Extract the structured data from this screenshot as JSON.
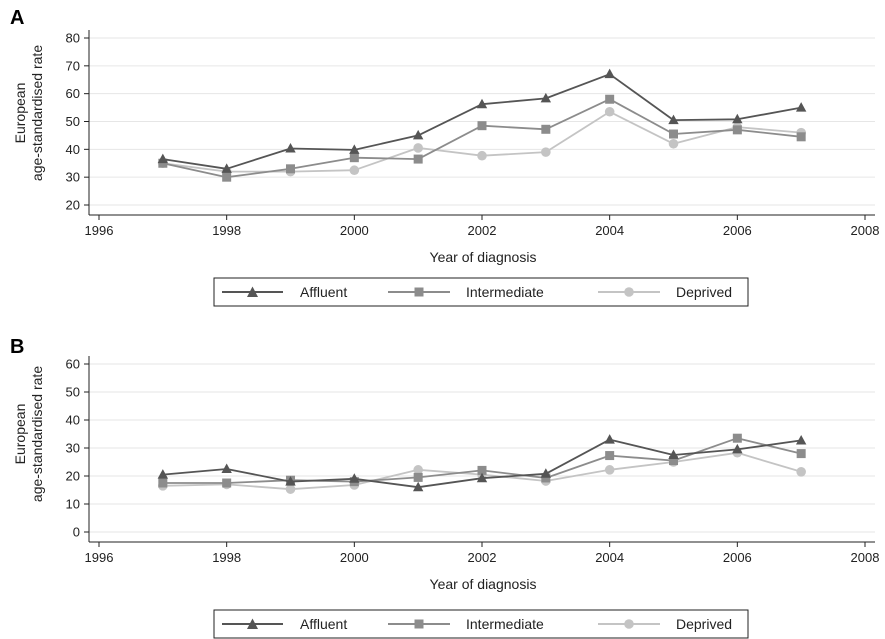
{
  "panels": [
    {
      "letter": "A",
      "ylabel_line1": "European",
      "ylabel_line2": "age-standardised rate",
      "xlabel": "Year of diagnosis"
    },
    {
      "letter": "B",
      "ylabel_line1": "European",
      "ylabel_line2": "age-standardised rate",
      "xlabel": "Year of diagnosis"
    }
  ],
  "chart_data": [
    {
      "type": "line",
      "panel": "A",
      "xlabel": "Year of diagnosis",
      "ylabel": "European age-standardised rate",
      "xlim": [
        1996,
        2008
      ],
      "ylim": [
        20,
        80
      ],
      "xticks": [
        1996,
        1998,
        2000,
        2002,
        2004,
        2006,
        2008
      ],
      "yticks": [
        20,
        30,
        40,
        50,
        60,
        70,
        80
      ],
      "grid": "horizontal",
      "legend_position": "bottom",
      "x": [
        1997,
        1998,
        1999,
        2000,
        2001,
        2002,
        2003,
        2004,
        2005,
        2006,
        2007
      ],
      "series": [
        {
          "name": "Affluent",
          "marker": "triangle",
          "color": "#555555",
          "values": [
            36.5,
            33,
            40.3,
            39.8,
            45,
            56.2,
            58.3,
            67,
            50.5,
            50.8,
            55
          ]
        },
        {
          "name": "Intermediate",
          "marker": "square",
          "color": "#8c8c8c",
          "values": [
            35,
            30,
            33,
            37,
            36.5,
            48.5,
            47.2,
            58,
            45.5,
            47,
            44.5
          ]
        },
        {
          "name": "Deprived",
          "marker": "circle",
          "color": "#c4c4c4",
          "values": [
            35,
            32,
            32,
            32.5,
            40.5,
            37.7,
            39,
            53.5,
            42,
            48,
            46
          ]
        }
      ]
    },
    {
      "type": "line",
      "panel": "B",
      "xlabel": "Year of diagnosis",
      "ylabel": "European age-standardised rate",
      "xlim": [
        1996,
        2008
      ],
      "ylim": [
        0,
        60
      ],
      "xticks": [
        1996,
        1998,
        2000,
        2002,
        2004,
        2006,
        2008
      ],
      "yticks": [
        0,
        10,
        20,
        30,
        40,
        50,
        60
      ],
      "grid": "horizontal",
      "legend_position": "bottom",
      "x": [
        1997,
        1998,
        1999,
        2000,
        2001,
        2002,
        2003,
        2004,
        2005,
        2006,
        2007
      ],
      "series": [
        {
          "name": "Affluent",
          "marker": "triangle",
          "color": "#555555",
          "values": [
            20.5,
            22.5,
            18,
            19,
            16,
            19.2,
            20.8,
            33,
            27.5,
            29.5,
            32.7
          ]
        },
        {
          "name": "Intermediate",
          "marker": "square",
          "color": "#8c8c8c",
          "values": [
            17.5,
            17.5,
            18.5,
            18,
            19.5,
            22,
            19.3,
            27.3,
            25.5,
            33.5,
            28
          ]
        },
        {
          "name": "Deprived",
          "marker": "circle",
          "color": "#c4c4c4",
          "values": [
            16.5,
            17,
            15.3,
            16.8,
            22.2,
            20.5,
            18.2,
            22.2,
            25,
            28.3,
            21.5
          ]
        }
      ]
    }
  ]
}
